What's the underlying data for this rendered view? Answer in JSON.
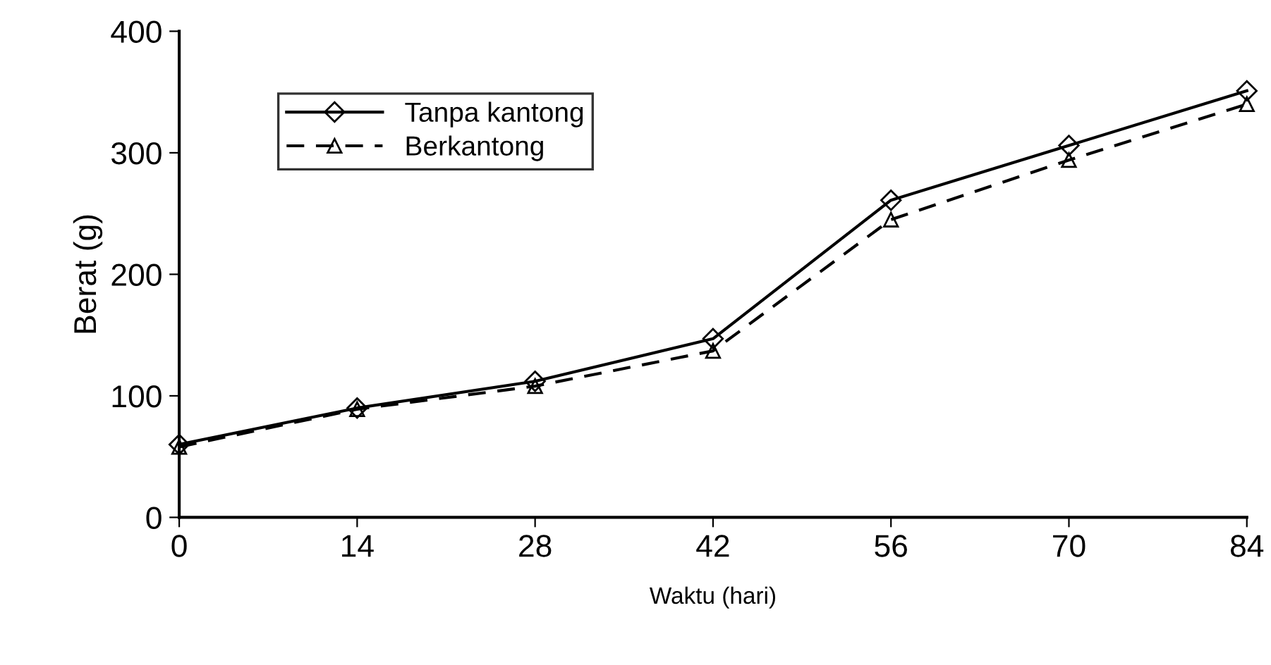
{
  "chart_data": {
    "type": "line",
    "xlabel": "Waktu (hari)",
    "ylabel": "Berat (g)",
    "x": [
      0,
      14,
      28,
      42,
      56,
      70,
      84
    ],
    "series": [
      {
        "name": "Tanpa kantong",
        "color": "#000000",
        "marker": "diamond",
        "line_style": "solid",
        "values": [
          60,
          90,
          112,
          147,
          261,
          306,
          351
        ]
      },
      {
        "name": "Berkantong",
        "color": "#000000",
        "marker": "triangle",
        "line_style": "dashed",
        "values": [
          58,
          89,
          108,
          137,
          245,
          294,
          340
        ]
      }
    ],
    "xlim": [
      0,
      84
    ],
    "xticks": [
      0,
      14,
      28,
      42,
      56,
      70,
      84
    ],
    "ylim": [
      0,
      400
    ],
    "yticks": [
      0,
      100,
      200,
      300,
      400
    ],
    "grid": false,
    "legend": "top left"
  }
}
